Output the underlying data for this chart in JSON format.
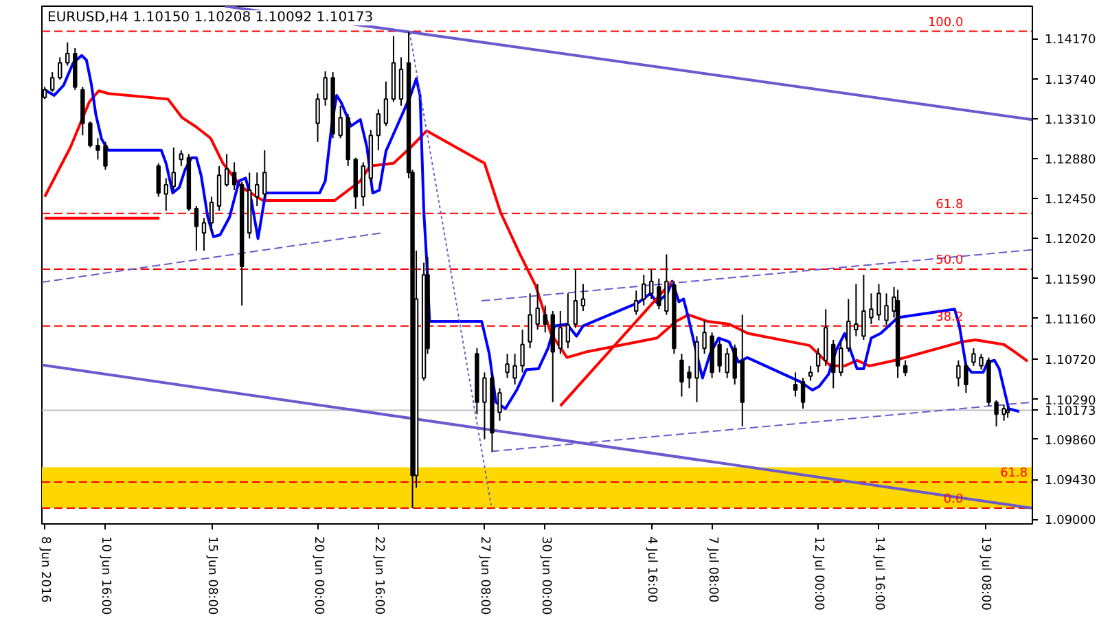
{
  "chart_data": {
    "type": "candlestick",
    "title": "EURUSD,H4  1.10150 1.10208 1.10092 1.10173",
    "xlim": [
      "2016-06-07T21:00",
      "2016-07-21T10:00"
    ],
    "ylim": [
      1.0895,
      1.1452
    ],
    "xticks": [
      {
        "value": "2016-06-08T00:00",
        "label": "8 Jun 2016"
      },
      {
        "value": "2016-06-10T16:00",
        "label": "10 Jun 16:00"
      },
      {
        "value": "2016-06-15T08:00",
        "label": "15 Jun 08:00"
      },
      {
        "value": "2016-06-20T00:00",
        "label": "20 Jun 00:00"
      },
      {
        "value": "2016-06-22T16:00",
        "label": "22 Jun 16:00"
      },
      {
        "value": "2016-06-27T08:00",
        "label": "27 Jun 08:00"
      },
      {
        "value": "2016-06-30T00:00",
        "label": "30 Jun 00:00"
      },
      {
        "value": "2016-07-04T16:00",
        "label": "4 Jul 16:00"
      },
      {
        "value": "2016-07-07T08:00",
        "label": "7 Jul 08:00"
      },
      {
        "value": "2016-07-12T00:00",
        "label": "12 Jul 00:00"
      },
      {
        "value": "2016-07-14T16:00",
        "label": "14 Jul 16:00"
      },
      {
        "value": "2016-07-19T08:00",
        "label": "19 Jul 08:00"
      }
    ],
    "yticks": [
      {
        "value": 1.1417,
        "label": "1.14170"
      },
      {
        "value": 1.1374,
        "label": "1.13740"
      },
      {
        "value": 1.1331,
        "label": "1.13310"
      },
      {
        "value": 1.1288,
        "label": "1.12880"
      },
      {
        "value": 1.1245,
        "label": "1.12450"
      },
      {
        "value": 1.1202,
        "label": "1.12020"
      },
      {
        "value": 1.1159,
        "label": "1.11590"
      },
      {
        "value": 1.1116,
        "label": "1.11160"
      },
      {
        "value": 1.1072,
        "label": "1.10720"
      },
      {
        "value": 1.1029,
        "label": "1.10290"
      },
      {
        "value": 1.0986,
        "label": "1.09860"
      },
      {
        "value": 1.0943,
        "label": "1.09430"
      },
      {
        "value": 1.09,
        "label": "1.09000"
      }
    ],
    "grid": false,
    "x": [
      "2016-06-08T00:00",
      "2016-06-08T08:00",
      "2016-06-08T16:00",
      "2016-06-09T00:00",
      "2016-06-09T08:00",
      "2016-06-09T16:00",
      "2016-06-10T00:00",
      "2016-06-10T08:00",
      "2016-06-10T16:00",
      "2016-06-13T00:00",
      "2016-06-13T08:00",
      "2016-06-13T16:00",
      "2016-06-14T00:00",
      "2016-06-14T08:00",
      "2016-06-14T16:00",
      "2016-06-15T00:00",
      "2016-06-15T08:00",
      "2016-06-15T16:00",
      "2016-06-16T00:00",
      "2016-06-16T08:00",
      "2016-06-16T16:00",
      "2016-06-17T00:00",
      "2016-06-17T08:00",
      "2016-06-17T16:00",
      "2016-06-20T00:00",
      "2016-06-20T08:00",
      "2016-06-20T16:00",
      "2016-06-21T00:00",
      "2016-06-21T08:00",
      "2016-06-21T16:00",
      "2016-06-22T00:00",
      "2016-06-22T08:00",
      "2016-06-22T16:00",
      "2016-06-23T00:00",
      "2016-06-23T08:00",
      "2016-06-23T16:00",
      "2016-06-24T00:00",
      "2016-06-24T04:00",
      "2016-06-24T08:00",
      "2016-06-24T16:00",
      "2016-06-24T20:00",
      "2016-06-27T00:00",
      "2016-06-27T08:00",
      "2016-06-27T16:00",
      "2016-06-28T00:00",
      "2016-06-28T08:00",
      "2016-06-28T16:00",
      "2016-06-29T00:00",
      "2016-06-29T08:00",
      "2016-06-29T16:00",
      "2016-06-30T00:00",
      "2016-06-30T08:00",
      "2016-06-30T16:00",
      "2016-07-01T00:00",
      "2016-07-01T08:00",
      "2016-07-01T16:00",
      "2016-07-04T00:00",
      "2016-07-04T08:00",
      "2016-07-04T16:00",
      "2016-07-05T00:00",
      "2016-07-05T08:00",
      "2016-07-05T16:00",
      "2016-07-06T00:00",
      "2016-07-06T08:00",
      "2016-07-06T16:00",
      "2016-07-07T00:00",
      "2016-07-07T08:00",
      "2016-07-07T16:00",
      "2016-07-08T00:00",
      "2016-07-08T08:00",
      "2016-07-08T16:00",
      "2016-07-11T00:00",
      "2016-07-11T08:00",
      "2016-07-11T16:00",
      "2016-07-12T00:00",
      "2016-07-12T08:00",
      "2016-07-12T16:00",
      "2016-07-13T00:00",
      "2016-07-13T08:00",
      "2016-07-13T16:00",
      "2016-07-14T00:00",
      "2016-07-14T08:00",
      "2016-07-14T16:00",
      "2016-07-15T00:00",
      "2016-07-15T08:00",
      "2016-07-15T12:00",
      "2016-07-15T20:00",
      "2016-07-18T04:00",
      "2016-07-18T12:00",
      "2016-07-18T20:00",
      "2016-07-19T04:00",
      "2016-07-19T12:00",
      "2016-07-19T20:00",
      "2016-07-20T04:00",
      "2016-07-20T08:00"
    ],
    "ohlc": [
      [
        1.1354,
        1.1365,
        1.1352,
        1.1362
      ],
      [
        1.1362,
        1.1381,
        1.136,
        1.1375
      ],
      [
        1.1375,
        1.1397,
        1.1373,
        1.1391
      ],
      [
        1.1391,
        1.1413,
        1.1388,
        1.1401
      ],
      [
        1.1401,
        1.1407,
        1.1362,
        1.1365
      ],
      [
        1.1362,
        1.1365,
        1.1313,
        1.1326
      ],
      [
        1.1326,
        1.1328,
        1.13,
        1.1302
      ],
      [
        1.1302,
        1.131,
        1.1287,
        1.1297
      ],
      [
        1.1302,
        1.1306,
        1.1276,
        1.128
      ],
      [
        1.128,
        1.1283,
        1.1247,
        1.1251
      ],
      [
        1.125,
        1.1267,
        1.1232,
        1.126
      ],
      [
        1.1258,
        1.13,
        1.1254,
        1.1273
      ],
      [
        1.1287,
        1.1297,
        1.128,
        1.1293
      ],
      [
        1.1289,
        1.1293,
        1.1232,
        1.1234
      ],
      [
        1.1234,
        1.1237,
        1.1189,
        1.1215
      ],
      [
        1.1208,
        1.1224,
        1.1189,
        1.1219
      ],
      [
        1.1219,
        1.1247,
        1.1208,
        1.1241
      ],
      [
        1.1237,
        1.128,
        1.1232,
        1.127
      ],
      [
        1.126,
        1.1293,
        1.1258,
        1.1277
      ],
      [
        1.1273,
        1.1284,
        1.1254,
        1.126
      ],
      [
        1.126,
        1.1263,
        1.113,
        1.1172
      ],
      [
        1.1208,
        1.1273,
        1.1202,
        1.1254
      ],
      [
        1.1247,
        1.1273,
        1.1237,
        1.126
      ],
      [
        1.125,
        1.1297,
        1.1245,
        1.1273
      ],
      [
        1.1326,
        1.1358,
        1.1306,
        1.1352
      ],
      [
        1.1352,
        1.1382,
        1.1345,
        1.1375
      ],
      [
        1.1375,
        1.1381,
        1.131,
        1.1315
      ],
      [
        1.1313,
        1.1345,
        1.131,
        1.1332
      ],
      [
        1.1332,
        1.1336,
        1.128,
        1.1287
      ],
      [
        1.1287,
        1.1289,
        1.1234,
        1.1247
      ],
      [
        1.1247,
        1.1284,
        1.1237,
        1.128
      ],
      [
        1.1267,
        1.1319,
        1.1263,
        1.1313
      ],
      [
        1.1313,
        1.1341,
        1.1297,
        1.1336
      ],
      [
        1.1326,
        1.1371,
        1.1323,
        1.1352
      ],
      [
        1.1352,
        1.142,
        1.1349,
        1.1391
      ],
      [
        1.1352,
        1.1397,
        1.1345,
        1.1384
      ],
      [
        1.1391,
        1.1424,
        1.1267,
        1.1273
      ],
      [
        1.1273,
        1.1276,
        1.0912,
        1.0947
      ],
      [
        1.0947,
        1.1189,
        1.0934,
        1.1137
      ],
      [
        1.1052,
        1.1176,
        1.1049,
        1.1163
      ],
      [
        1.1163,
        1.1182,
        1.1078,
        1.1084
      ],
      [
        1.1078,
        1.1084,
        1.1013,
        1.1026
      ],
      [
        1.1026,
        1.1058,
        1.0986,
        1.1052
      ],
      [
        1.1052,
        1.1058,
        1.0973,
        1.0993
      ],
      [
        1.1015,
        1.1041,
        1.1006,
        1.1036
      ],
      [
        1.1058,
        1.1078,
        1.1052,
        1.1067
      ],
      [
        1.1052,
        1.1078,
        1.1045,
        1.1065
      ],
      [
        1.1065,
        1.1104,
        1.1058,
        1.1088
      ],
      [
        1.1091,
        1.1143,
        1.1084,
        1.112
      ],
      [
        1.111,
        1.1153,
        1.1104,
        1.1127
      ],
      [
        1.112,
        1.113,
        1.1101,
        1.111
      ],
      [
        1.112,
        1.1124,
        1.1026,
        1.108
      ],
      [
        1.1084,
        1.1124,
        1.1078,
        1.1106
      ],
      [
        1.1091,
        1.1143,
        1.1084,
        1.1109
      ],
      [
        1.111,
        1.1169,
        1.1106,
        1.1135
      ],
      [
        1.113,
        1.1153,
        1.1124,
        1.1137
      ],
      [
        1.1124,
        1.1146,
        1.112,
        1.1135
      ],
      [
        1.1137,
        1.1163,
        1.113,
        1.1153
      ],
      [
        1.1143,
        1.1169,
        1.1137,
        1.1156
      ],
      [
        1.115,
        1.1159,
        1.1126,
        1.113
      ],
      [
        1.1124,
        1.1185,
        1.112,
        1.1156
      ],
      [
        1.1152,
        1.1156,
        1.1078,
        1.1084
      ],
      [
        1.1071,
        1.1078,
        1.1032,
        1.1048
      ],
      [
        1.1058,
        1.1065,
        1.1041,
        1.1052
      ],
      [
        1.1052,
        1.1097,
        1.1026,
        1.1091
      ],
      [
        1.1084,
        1.1114,
        1.1078,
        1.1101
      ],
      [
        1.1097,
        1.1101,
        1.1052,
        1.1058
      ],
      [
        1.1088,
        1.1093,
        1.1058,
        1.1065
      ],
      [
        1.1058,
        1.1084,
        1.1052,
        1.1078
      ],
      [
        1.1084,
        1.1088,
        1.1045,
        1.1052
      ],
      [
        1.1071,
        1.112,
        1.1,
        1.1026
      ],
      [
        1.1045,
        1.1058,
        1.1032,
        1.1039
      ],
      [
        1.1048,
        1.1052,
        1.1019,
        1.1026
      ],
      [
        1.1054,
        1.1065,
        1.1049,
        1.1058
      ],
      [
        1.1065,
        1.1084,
        1.1058,
        1.1078
      ],
      [
        1.1071,
        1.1126,
        1.1065,
        1.1106
      ],
      [
        1.1088,
        1.1093,
        1.1041,
        1.1058
      ],
      [
        1.1058,
        1.1091,
        1.1054,
        1.1084
      ],
      [
        1.1084,
        1.1137,
        1.108,
        1.1113
      ],
      [
        1.1104,
        1.1153,
        1.1097,
        1.111
      ],
      [
        1.1097,
        1.1163,
        1.1093,
        1.1124
      ],
      [
        1.1117,
        1.1143,
        1.111,
        1.1126
      ],
      [
        1.112,
        1.1153,
        1.1114,
        1.1143
      ],
      [
        1.1114,
        1.1143,
        1.1109,
        1.113
      ],
      [
        1.1124,
        1.115,
        1.1117,
        1.1139
      ],
      [
        1.1135,
        1.1147,
        1.1052,
        1.1065
      ],
      [
        1.1065,
        1.1071,
        1.1054,
        1.1058
      ],
      [
        1.1052,
        1.1071,
        1.1043,
        1.1065
      ],
      [
        1.1065,
        1.1069,
        1.1036,
        1.1045
      ],
      [
        1.1069,
        1.1084,
        1.1065,
        1.1078
      ],
      [
        1.1065,
        1.1078,
        1.1061,
        1.1074
      ],
      [
        1.1071,
        1.1074,
        1.1022,
        1.1026
      ],
      [
        1.1026,
        1.1028,
        1.1,
        1.1013
      ],
      [
        1.1013,
        1.1023,
        1.1006,
        1.1019
      ],
      [
        1.1015,
        1.10208,
        1.10092,
        1.10173
      ]
    ],
    "series": [
      {
        "type": "line",
        "color": "#ff0000",
        "line_style": "solid",
        "x": [
          "2016-06-08T00:00",
          "2016-06-09T03:00",
          "2016-06-09T23:00",
          "2016-06-10T09:00",
          "2016-06-10T19:00",
          "2016-06-13T10:00",
          "2016-06-14T01:00",
          "2016-06-14T16:00",
          "2016-06-15T07:00",
          "2016-06-15T20:00",
          "2016-06-16T16:00",
          "2016-06-17T14:00",
          "2016-06-20T18:00",
          "2016-06-21T21:00",
          "2016-06-22T07:00",
          "2016-06-23T08:00",
          "2016-06-24T02:00",
          "2016-06-24T19:00",
          "2016-06-27T08:00",
          "2016-06-28T01:00",
          "2016-06-28T21:00",
          "2016-06-29T14:00",
          "2016-06-30T06:00",
          "2016-06-30T23:00",
          "2016-07-01T19:00",
          "2016-07-04T22:00",
          "2016-07-05T18:00",
          "2016-07-06T07:00",
          "2016-07-07T03:00",
          "2016-07-08T02:00",
          "2016-07-08T22:00",
          "2016-07-11T15:00",
          "2016-07-12T04:00",
          "2016-07-12T13:00",
          "2016-07-13T04:00",
          "2016-07-13T17:00",
          "2016-07-14T06:00",
          "2016-07-15T09:00",
          "2016-07-18T08:00",
          "2016-07-18T22:00",
          "2016-07-20T04:00",
          "2016-07-20T14:00",
          "2016-07-21T05:00"
        ],
        "values": [
          1.1247,
          1.13,
          1.1349,
          1.1361,
          1.1358,
          1.1352,
          1.1332,
          1.1322,
          1.131,
          1.1283,
          1.1257,
          1.1243,
          1.1243,
          1.1264,
          1.128,
          1.1283,
          1.13,
          1.1318,
          1.1283,
          1.123,
          1.1186,
          1.1151,
          1.11,
          1.1074,
          1.108,
          1.1095,
          1.1113,
          1.112,
          1.1113,
          1.111,
          1.11,
          1.1087,
          1.1074,
          1.1065,
          1.1065,
          1.1071,
          1.1065,
          1.1071,
          1.1091,
          1.1093,
          1.1088,
          1.1081,
          1.107
        ]
      },
      {
        "type": "line",
        "color": "#0000ff",
        "line_style": "solid",
        "x": [
          "2016-06-08T00:00",
          "2016-06-08T10:00",
          "2016-06-08T20:00",
          "2016-06-09T06:00",
          "2016-06-09T15:00",
          "2016-06-09T20:00",
          "2016-06-10T01:00",
          "2016-06-10T06:00",
          "2016-06-10T12:00",
          "2016-06-10T19:00",
          "2016-06-13T03:00",
          "2016-06-13T08:00",
          "2016-06-13T15:00",
          "2016-06-13T22:00",
          "2016-06-14T04:00",
          "2016-06-14T11:00",
          "2016-06-14T16:00",
          "2016-06-14T21:00",
          "2016-06-15T04:00",
          "2016-06-15T10:00",
          "2016-06-15T17:00",
          "2016-06-16T03:00",
          "2016-06-16T13:00",
          "2016-06-16T20:00",
          "2016-06-17T02:00",
          "2016-06-17T09:00",
          "2016-06-17T17:00",
          "2016-06-20T02:00",
          "2016-06-20T08:00",
          "2016-06-20T15:00",
          "2016-06-20T20:00",
          "2016-06-21T01:00",
          "2016-06-21T11:00",
          "2016-06-21T21:00",
          "2016-06-22T04:00",
          "2016-06-22T10:00",
          "2016-06-22T17:00",
          "2016-06-23T00:00",
          "2016-06-23T13:00",
          "2016-06-24T02:00",
          "2016-06-24T08:00",
          "2016-06-24T12:00",
          "2016-06-24T16:00",
          "2016-06-24T19:00",
          "2016-06-24T22:00",
          "2016-06-27T05:00",
          "2016-06-27T13:00",
          "2016-06-27T20:00",
          "2016-06-28T06:00",
          "2016-06-28T18:00",
          "2016-06-29T04:00",
          "2016-06-29T17:00",
          "2016-06-30T03:00",
          "2016-06-30T10:00",
          "2016-06-30T23:00",
          "2016-07-01T09:00",
          "2016-07-01T16:00",
          "2016-07-04T02:00",
          "2016-07-04T15:00",
          "2016-07-04T22:00",
          "2016-07-05T09:00",
          "2016-07-05T14:00",
          "2016-07-05T21:00",
          "2016-07-06T02:00",
          "2016-07-06T07:00",
          "2016-07-06T17:00",
          "2016-07-06T22:00",
          "2016-07-07T06:00",
          "2016-07-07T15:00",
          "2016-07-08T02:00",
          "2016-07-08T12:00",
          "2016-07-08T21:00",
          "2016-07-11T05:00",
          "2016-07-11T18:00",
          "2016-07-12T01:00",
          "2016-07-12T11:00",
          "2016-07-12T19:00",
          "2016-07-13T04:00",
          "2016-07-13T10:00",
          "2016-07-13T17:00",
          "2016-07-14T00:00",
          "2016-07-14T08:00",
          "2016-07-14T18:00",
          "2016-07-15T12:00",
          "2016-07-18T00:00",
          "2016-07-18T05:00",
          "2016-07-18T12:00",
          "2016-07-18T18:00",
          "2016-07-19T06:00",
          "2016-07-19T11:00",
          "2016-07-19T18:00",
          "2016-07-19T23:00",
          "2016-07-20T09:00",
          "2016-07-20T20:00"
        ],
        "values": [
          1.1362,
          1.1356,
          1.1367,
          1.1391,
          1.1399,
          1.1394,
          1.1369,
          1.1335,
          1.1309,
          1.1297,
          1.1297,
          1.1283,
          1.1251,
          1.1257,
          1.1276,
          1.1289,
          1.1289,
          1.127,
          1.1225,
          1.1204,
          1.1206,
          1.1225,
          1.1264,
          1.1267,
          1.1243,
          1.1202,
          1.1251,
          1.1251,
          1.1264,
          1.1326,
          1.1356,
          1.1348,
          1.1323,
          1.133,
          1.13,
          1.1251,
          1.1254,
          1.1296,
          1.1326,
          1.1356,
          1.1374,
          1.1356,
          1.123,
          1.1178,
          1.1113,
          1.1113,
          1.1078,
          1.1026,
          1.1019,
          1.1039,
          1.1061,
          1.1062,
          1.1084,
          1.1108,
          1.111,
          1.1097,
          1.1108,
          1.1133,
          1.1143,
          1.1133,
          1.1143,
          1.1156,
          1.1134,
          1.1137,
          1.1117,
          1.1073,
          1.1052,
          1.1078,
          1.1095,
          1.1091,
          1.1069,
          1.1074,
          1.1048,
          1.1039,
          1.1043,
          1.1056,
          1.1082,
          1.11,
          1.1082,
          1.1062,
          1.1062,
          1.1095,
          1.11,
          1.1117,
          1.1126,
          1.1108,
          1.1065,
          1.1058,
          1.1058,
          1.1069,
          1.1071,
          1.1062,
          1.1019,
          1.1016
        ]
      },
      {
        "type": "line",
        "color": "#ff0000",
        "line_style": "solid",
        "x": [
          "2016-06-30T16:00",
          "2016-07-05T14:00"
        ],
        "values": [
          1.1022,
          1.1156
        ]
      },
      {
        "type": "line",
        "color": "#ff0000",
        "line_style": "solid",
        "x": [
          "2016-06-08T00:00",
          "2016-06-13T01:00"
        ],
        "values": [
          1.1224,
          1.1224
        ]
      },
      {
        "type": "line",
        "color": "#6a5acd",
        "line_style": "solid",
        "x": [
          "2016-06-15T22:00",
          "2016-07-21T10:00"
        ],
        "values": [
          1.1452,
          1.133
        ]
      },
      {
        "type": "line",
        "color": "#6a5acd",
        "line_style": "solid",
        "x": [
          "2016-06-07T21:00",
          "2016-07-21T10:00"
        ],
        "values": [
          1.1066,
          1.0912
        ]
      },
      {
        "type": "line",
        "color": "#6a5acd",
        "line_style": "dashed",
        "x": [
          "2016-06-07T21:00",
          "2016-06-22T19:00"
        ],
        "values": [
          1.1155,
          1.1208
        ]
      },
      {
        "type": "line",
        "color": "#6a5acd",
        "line_style": "dashed",
        "x": [
          "2016-06-27T05:00",
          "2016-07-21T10:00"
        ],
        "values": [
          1.1135,
          1.119
        ]
      },
      {
        "type": "line",
        "color": "#6a5acd",
        "line_style": "dashed",
        "x": [
          "2016-06-27T15:00",
          "2016-07-21T10:00"
        ],
        "values": [
          1.0973,
          1.1026
        ]
      },
      {
        "type": "line",
        "color": "#6a5acd",
        "line_style": "dotted",
        "x": [
          "2016-06-24T01:00",
          "2016-06-27T15:00"
        ],
        "values": [
          1.1424,
          1.0915
        ]
      }
    ],
    "bands": [
      {
        "axis": "y",
        "from": 1.0912,
        "to": 1.0956,
        "color": "#ffd700"
      }
    ],
    "ref_lines": [
      {
        "axis": "y",
        "value": 1.1425,
        "color": "#ff0000",
        "line_style": "dashed"
      },
      {
        "axis": "y",
        "value": 1.1229,
        "color": "#ff0000",
        "line_style": "dashed"
      },
      {
        "axis": "y",
        "value": 1.1169,
        "color": "#ff0000",
        "line_style": "dashed"
      },
      {
        "axis": "y",
        "value": 1.1108,
        "color": "#ff0000",
        "line_style": "dashed"
      },
      {
        "axis": "y",
        "value": 1.0912,
        "color": "#ff0000",
        "line_style": "dashed"
      },
      {
        "axis": "y",
        "value": 1.094,
        "color": "#ff0000",
        "line_style": "dashed"
      },
      {
        "axis": "y",
        "value": 1.10173,
        "label": "1.10173",
        "color": "#c0c0c0",
        "line_style": "solid"
      }
    ],
    "annotations": [
      {
        "text": "100.0",
        "x": "2016-07-18T12:00",
        "y": 1.1425
      },
      {
        "text": "61.8",
        "x": "2016-07-18T12:00",
        "y": 1.1229
      },
      {
        "text": "50.0",
        "x": "2016-07-18T12:00",
        "y": 1.1169
      },
      {
        "text": "38.2",
        "x": "2016-07-18T12:00",
        "y": 1.1108
      },
      {
        "text": "0.0",
        "x": "2016-07-18T12:00",
        "y": 1.0912
      },
      {
        "text": "61.8",
        "x": "2016-07-21T08:00",
        "y": 1.094
      }
    ]
  }
}
